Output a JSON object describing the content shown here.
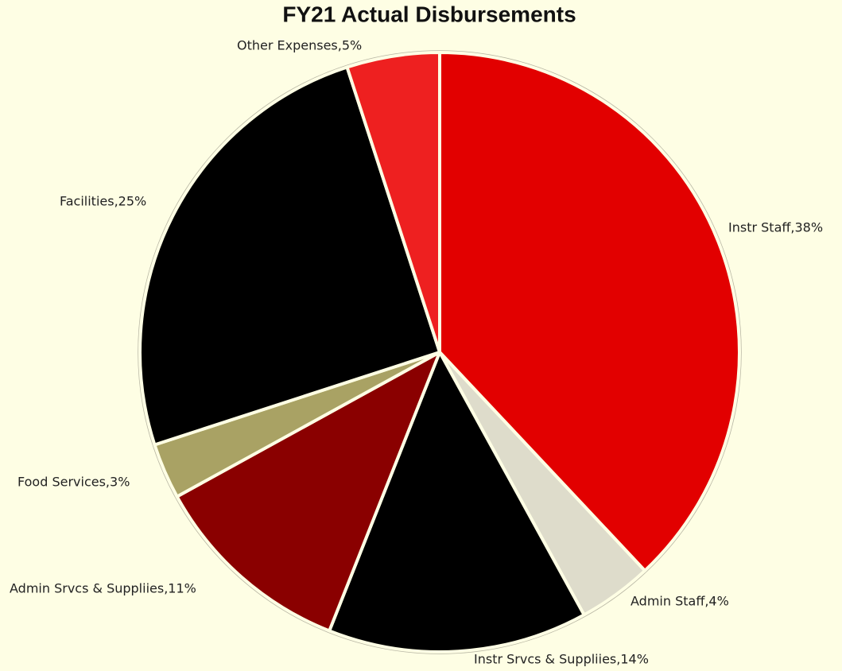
{
  "chart_data": {
    "type": "pie",
    "title": "FY21 Actual Disbursements",
    "values": [
      38,
      4,
      14,
      11,
      3,
      25,
      5
    ],
    "value_labels": [
      "Instr Staff,38%",
      "Admin Staff,4%",
      "Instr Srvcs & Suppliies,14%",
      "Admin Srvcs & Suppliies,11%",
      "Food Services,3%",
      "Facilities,25%",
      "Other Expenses,5%"
    ],
    "colors": [
      "#e20000",
      "#dedccb",
      "#000000",
      "#8a0000",
      "#a9a264",
      "#000000",
      "#ee2020"
    ]
  }
}
